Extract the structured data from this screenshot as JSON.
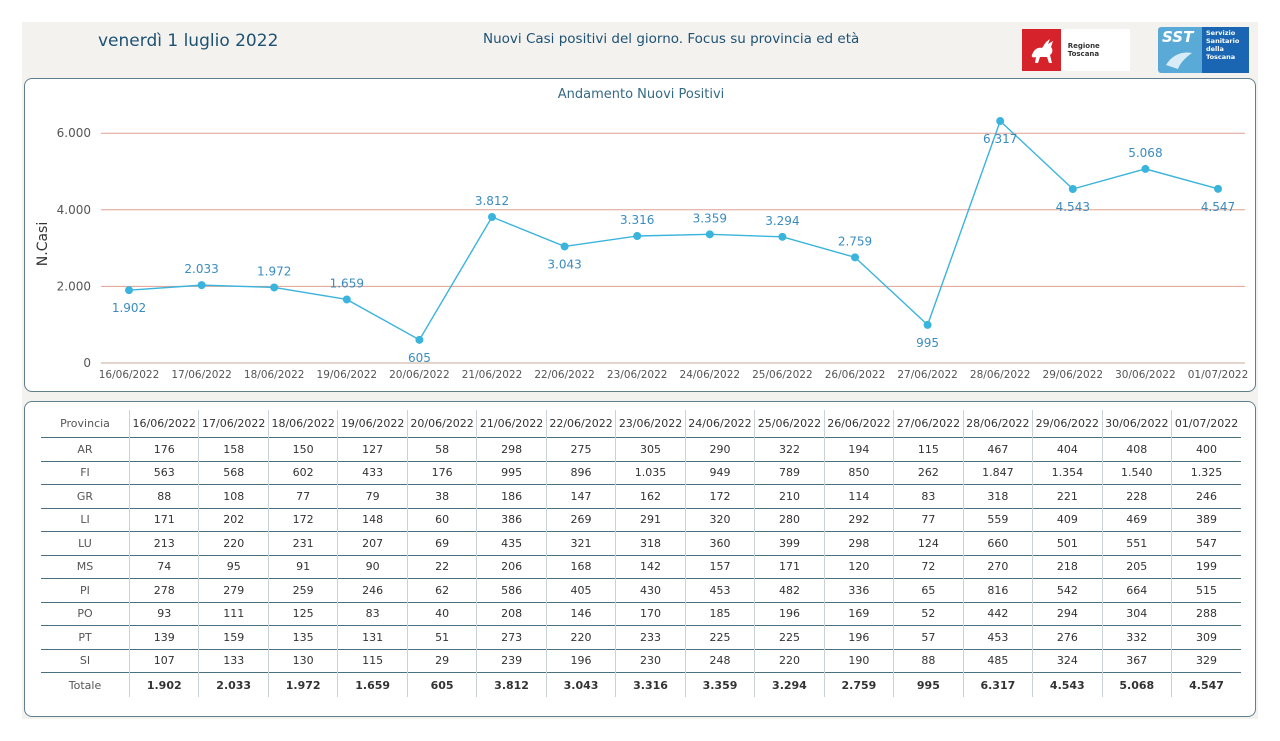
{
  "header": {
    "date": "venerdì 1 luglio 2022",
    "title": "Nuovi Casi positivi del giorno. Focus su provincia ed età",
    "logo_rt_label": "Regione Toscana",
    "logo_sst_mark": "SST",
    "logo_sst_lines": [
      "Servizio",
      "Sanitario",
      "della",
      "Toscana"
    ]
  },
  "colors": {
    "line": "#3ab4dc",
    "gridline": "#e0a090",
    "label": "#3a8cc0"
  },
  "chart_data": {
    "type": "line",
    "title": "Andamento Nuovi Positivi",
    "ylabel": "N.Casi",
    "xlabel": "",
    "ylim": [
      0,
      6800
    ],
    "yticks": [
      0,
      2000,
      4000,
      6000
    ],
    "ytick_labels": [
      "0",
      "2.000",
      "4.000",
      "6.000"
    ],
    "grid": true,
    "categories": [
      "16/06/2022",
      "17/06/2022",
      "18/06/2022",
      "19/06/2022",
      "20/06/2022",
      "21/06/2022",
      "22/06/2022",
      "23/06/2022",
      "24/06/2022",
      "25/06/2022",
      "26/06/2022",
      "27/06/2022",
      "28/06/2022",
      "29/06/2022",
      "30/06/2022",
      "01/07/2022"
    ],
    "values": [
      1902,
      2033,
      1972,
      1659,
      605,
      3812,
      3043,
      3316,
      3359,
      3294,
      2759,
      995,
      6317,
      4543,
      5068,
      4547
    ],
    "value_labels": [
      "1.902",
      "2.033",
      "1.972",
      "1.659",
      "605",
      "3.812",
      "3.043",
      "3.316",
      "3.359",
      "3.294",
      "2.759",
      "995",
      "6.317",
      "4.543",
      "5.068",
      "4.547"
    ],
    "label_position": [
      "below",
      "above",
      "above",
      "above",
      "below",
      "above",
      "below",
      "above",
      "above",
      "above",
      "above",
      "below",
      "below",
      "below",
      "above",
      "below"
    ]
  },
  "table": {
    "header_label": "Provincia",
    "dates": [
      "16/06/2022",
      "17/06/2022",
      "18/06/2022",
      "19/06/2022",
      "20/06/2022",
      "21/06/2022",
      "22/06/2022",
      "23/06/2022",
      "24/06/2022",
      "25/06/2022",
      "26/06/2022",
      "27/06/2022",
      "28/06/2022",
      "29/06/2022",
      "30/06/2022",
      "01/07/2022"
    ],
    "rows": [
      {
        "name": "AR",
        "values": [
          "176",
          "158",
          "150",
          "127",
          "58",
          "298",
          "275",
          "305",
          "290",
          "322",
          "194",
          "115",
          "467",
          "404",
          "408",
          "400"
        ]
      },
      {
        "name": "FI",
        "values": [
          "563",
          "568",
          "602",
          "433",
          "176",
          "995",
          "896",
          "1.035",
          "949",
          "789",
          "850",
          "262",
          "1.847",
          "1.354",
          "1.540",
          "1.325"
        ]
      },
      {
        "name": "GR",
        "values": [
          "88",
          "108",
          "77",
          "79",
          "38",
          "186",
          "147",
          "162",
          "172",
          "210",
          "114",
          "83",
          "318",
          "221",
          "228",
          "246"
        ]
      },
      {
        "name": "LI",
        "values": [
          "171",
          "202",
          "172",
          "148",
          "60",
          "386",
          "269",
          "291",
          "320",
          "280",
          "292",
          "77",
          "559",
          "409",
          "469",
          "389"
        ]
      },
      {
        "name": "LU",
        "values": [
          "213",
          "220",
          "231",
          "207",
          "69",
          "435",
          "321",
          "318",
          "360",
          "399",
          "298",
          "124",
          "660",
          "501",
          "551",
          "547"
        ]
      },
      {
        "name": "MS",
        "values": [
          "74",
          "95",
          "91",
          "90",
          "22",
          "206",
          "168",
          "142",
          "157",
          "171",
          "120",
          "72",
          "270",
          "218",
          "205",
          "199"
        ]
      },
      {
        "name": "PI",
        "values": [
          "278",
          "279",
          "259",
          "246",
          "62",
          "586",
          "405",
          "430",
          "453",
          "482",
          "336",
          "65",
          "816",
          "542",
          "664",
          "515"
        ]
      },
      {
        "name": "PO",
        "values": [
          "93",
          "111",
          "125",
          "83",
          "40",
          "208",
          "146",
          "170",
          "185",
          "196",
          "169",
          "52",
          "442",
          "294",
          "304",
          "288"
        ]
      },
      {
        "name": "PT",
        "values": [
          "139",
          "159",
          "135",
          "131",
          "51",
          "273",
          "220",
          "233",
          "225",
          "225",
          "196",
          "57",
          "453",
          "276",
          "332",
          "309"
        ]
      },
      {
        "name": "SI",
        "values": [
          "107",
          "133",
          "130",
          "115",
          "29",
          "239",
          "196",
          "230",
          "248",
          "220",
          "190",
          "88",
          "485",
          "324",
          "367",
          "329"
        ]
      }
    ],
    "total": {
      "name": "Totale",
      "values": [
        "1.902",
        "2.033",
        "1.972",
        "1.659",
        "605",
        "3.812",
        "3.043",
        "3.316",
        "3.359",
        "3.294",
        "2.759",
        "995",
        "6.317",
        "4.543",
        "5.068",
        "4.547"
      ]
    }
  }
}
